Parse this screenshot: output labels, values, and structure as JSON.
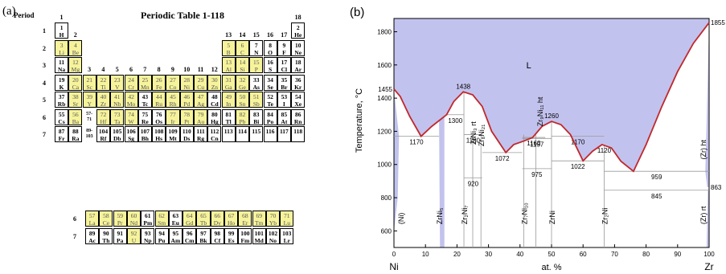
{
  "periodic_table": {
    "panel_label": "(a)",
    "title": "Periodic Table 1-118",
    "period_header": "Period",
    "group_labels": [
      "1",
      "2",
      "3",
      "4",
      "5",
      "6",
      "7",
      "8",
      "9",
      "10",
      "11",
      "12",
      "13",
      "14",
      "15",
      "16",
      "17",
      "18"
    ],
    "period_labels": [
      "1",
      "2",
      "3",
      "4",
      "5",
      "6",
      "7"
    ],
    "lan_act_period_labels": [
      "6",
      "7"
    ],
    "gap_labels": [
      "57-\n71",
      "89-\n103"
    ],
    "elements": [
      {
        "z": "1",
        "s": "H",
        "p": 1,
        "g": 1,
        "hl": false
      },
      {
        "z": "2",
        "s": "He",
        "p": 1,
        "g": 18,
        "hl": false
      },
      {
        "z": "3",
        "s": "Li",
        "p": 2,
        "g": 1,
        "hl": true
      },
      {
        "z": "4",
        "s": "Be",
        "p": 2,
        "g": 2,
        "hl": true
      },
      {
        "z": "5",
        "s": "B",
        "p": 2,
        "g": 13,
        "hl": true
      },
      {
        "z": "6",
        "s": "C",
        "p": 2,
        "g": 14,
        "hl": true
      },
      {
        "z": "7",
        "s": "N",
        "p": 2,
        "g": 15,
        "hl": false
      },
      {
        "z": "8",
        "s": "O",
        "p": 2,
        "g": 16,
        "hl": false
      },
      {
        "z": "9",
        "s": "F",
        "p": 2,
        "g": 17,
        "hl": false
      },
      {
        "z": "10",
        "s": "Ne",
        "p": 2,
        "g": 18,
        "hl": false
      },
      {
        "z": "11",
        "s": "Na",
        "p": 3,
        "g": 1,
        "hl": false
      },
      {
        "z": "12",
        "s": "Mg",
        "p": 3,
        "g": 2,
        "hl": true
      },
      {
        "z": "13",
        "s": "Al",
        "p": 3,
        "g": 13,
        "hl": true
      },
      {
        "z": "14",
        "s": "Si",
        "p": 3,
        "g": 14,
        "hl": true
      },
      {
        "z": "15",
        "s": "P",
        "p": 3,
        "g": 15,
        "hl": true
      },
      {
        "z": "16",
        "s": "S",
        "p": 3,
        "g": 16,
        "hl": false
      },
      {
        "z": "17",
        "s": "Cl",
        "p": 3,
        "g": 17,
        "hl": false
      },
      {
        "z": "18",
        "s": "Ar",
        "p": 3,
        "g": 18,
        "hl": false
      },
      {
        "z": "19",
        "s": "K",
        "p": 4,
        "g": 1,
        "hl": false
      },
      {
        "z": "20",
        "s": "Ca",
        "p": 4,
        "g": 2,
        "hl": true
      },
      {
        "z": "21",
        "s": "Sc",
        "p": 4,
        "g": 3,
        "hl": true
      },
      {
        "z": "22",
        "s": "Ti",
        "p": 4,
        "g": 4,
        "hl": true
      },
      {
        "z": "23",
        "s": "V",
        "p": 4,
        "g": 5,
        "hl": true
      },
      {
        "z": "24",
        "s": "Cr",
        "p": 4,
        "g": 6,
        "hl": true
      },
      {
        "z": "25",
        "s": "Mn",
        "p": 4,
        "g": 7,
        "hl": true
      },
      {
        "z": "26",
        "s": "Fe",
        "p": 4,
        "g": 8,
        "hl": true
      },
      {
        "z": "27",
        "s": "Co",
        "p": 4,
        "g": 9,
        "hl": true
      },
      {
        "z": "28",
        "s": "Ni",
        "p": 4,
        "g": 10,
        "hl": true
      },
      {
        "z": "29",
        "s": "Cu",
        "p": 4,
        "g": 11,
        "hl": true
      },
      {
        "z": "30",
        "s": "Zn",
        "p": 4,
        "g": 12,
        "hl": true
      },
      {
        "z": "31",
        "s": "Ga",
        "p": 4,
        "g": 13,
        "hl": true
      },
      {
        "z": "32",
        "s": "Ge",
        "p": 4,
        "g": 14,
        "hl": true
      },
      {
        "z": "33",
        "s": "As",
        "p": 4,
        "g": 15,
        "hl": false
      },
      {
        "z": "34",
        "s": "Se",
        "p": 4,
        "g": 16,
        "hl": false
      },
      {
        "z": "35",
        "s": "Br",
        "p": 4,
        "g": 17,
        "hl": false
      },
      {
        "z": "36",
        "s": "Kr",
        "p": 4,
        "g": 18,
        "hl": false
      },
      {
        "z": "37",
        "s": "Rb",
        "p": 5,
        "g": 1,
        "hl": false
      },
      {
        "z": "38",
        "s": "Sr",
        "p": 5,
        "g": 2,
        "hl": true
      },
      {
        "z": "39",
        "s": "Y",
        "p": 5,
        "g": 3,
        "hl": true
      },
      {
        "z": "40",
        "s": "Zr",
        "p": 5,
        "g": 4,
        "hl": true
      },
      {
        "z": "41",
        "s": "Nb",
        "p": 5,
        "g": 5,
        "hl": true
      },
      {
        "z": "42",
        "s": "Mo",
        "p": 5,
        "g": 6,
        "hl": true
      },
      {
        "z": "43",
        "s": "Tc",
        "p": 5,
        "g": 7,
        "hl": false
      },
      {
        "z": "44",
        "s": "Ru",
        "p": 5,
        "g": 8,
        "hl": true
      },
      {
        "z": "45",
        "s": "Rh",
        "p": 5,
        "g": 9,
        "hl": true
      },
      {
        "z": "46",
        "s": "Pd",
        "p": 5,
        "g": 10,
        "hl": true
      },
      {
        "z": "47",
        "s": "Ag",
        "p": 5,
        "g": 11,
        "hl": true
      },
      {
        "z": "48",
        "s": "Cd",
        "p": 5,
        "g": 12,
        "hl": false
      },
      {
        "z": "49",
        "s": "In",
        "p": 5,
        "g": 13,
        "hl": true
      },
      {
        "z": "50",
        "s": "Sn",
        "p": 5,
        "g": 14,
        "hl": true
      },
      {
        "z": "51",
        "s": "Sb",
        "p": 5,
        "g": 15,
        "hl": true
      },
      {
        "z": "52",
        "s": "Te",
        "p": 5,
        "g": 16,
        "hl": false
      },
      {
        "z": "53",
        "s": "I",
        "p": 5,
        "g": 17,
        "hl": false
      },
      {
        "z": "54",
        "s": "Xe",
        "p": 5,
        "g": 18,
        "hl": false
      },
      {
        "z": "55",
        "s": "Cs",
        "p": 6,
        "g": 1,
        "hl": false
      },
      {
        "z": "56",
        "s": "Ba",
        "p": 6,
        "g": 2,
        "hl": true
      },
      {
        "z": "72",
        "s": "Hf",
        "p": 6,
        "g": 4,
        "hl": true
      },
      {
        "z": "73",
        "s": "Ta",
        "p": 6,
        "g": 5,
        "hl": true
      },
      {
        "z": "74",
        "s": "W",
        "p": 6,
        "g": 6,
        "hl": true
      },
      {
        "z": "75",
        "s": "Re",
        "p": 6,
        "g": 7,
        "hl": false
      },
      {
        "z": "76",
        "s": "Os",
        "p": 6,
        "g": 8,
        "hl": false
      },
      {
        "z": "77",
        "s": "Ir",
        "p": 6,
        "g": 9,
        "hl": true
      },
      {
        "z": "78",
        "s": "Pt",
        "p": 6,
        "g": 10,
        "hl": true
      },
      {
        "z": "79",
        "s": "Au",
        "p": 6,
        "g": 11,
        "hl": true
      },
      {
        "z": "80",
        "s": "Hg",
        "p": 6,
        "g": 12,
        "hl": false
      },
      {
        "z": "81",
        "s": "Tl",
        "p": 6,
        "g": 13,
        "hl": false
      },
      {
        "z": "82",
        "s": "Pb",
        "p": 6,
        "g": 14,
        "hl": true
      },
      {
        "z": "83",
        "s": "Bi",
        "p": 6,
        "g": 15,
        "hl": false
      },
      {
        "z": "84",
        "s": "Po",
        "p": 6,
        "g": 16,
        "hl": false
      },
      {
        "z": "85",
        "s": "At",
        "p": 6,
        "g": 17,
        "hl": false
      },
      {
        "z": "86",
        "s": "Rn",
        "p": 6,
        "g": 18,
        "hl": false
      },
      {
        "z": "87",
        "s": "Fr",
        "p": 7,
        "g": 1,
        "hl": false
      },
      {
        "z": "88",
        "s": "Ra",
        "p": 7,
        "g": 2,
        "hl": false
      },
      {
        "z": "104",
        "s": "Rf",
        "p": 7,
        "g": 4,
        "hl": false
      },
      {
        "z": "105",
        "s": "Db",
        "p": 7,
        "g": 5,
        "hl": false
      },
      {
        "z": "106",
        "s": "Sg",
        "p": 7,
        "g": 6,
        "hl": false
      },
      {
        "z": "107",
        "s": "Bh",
        "p": 7,
        "g": 7,
        "hl": false
      },
      {
        "z": "108",
        "s": "Hs",
        "p": 7,
        "g": 8,
        "hl": false
      },
      {
        "z": "109",
        "s": "Mt",
        "p": 7,
        "g": 9,
        "hl": false
      },
      {
        "z": "110",
        "s": "Ds",
        "p": 7,
        "g": 10,
        "hl": false
      },
      {
        "z": "111",
        "s": "Rg",
        "p": 7,
        "g": 11,
        "hl": false
      },
      {
        "z": "112",
        "s": "Cn",
        "p": 7,
        "g": 12,
        "hl": false
      },
      {
        "z": "113",
        "s": "",
        "p": 7,
        "g": 13,
        "hl": false
      },
      {
        "z": "114",
        "s": "",
        "p": 7,
        "g": 14,
        "hl": false
      },
      {
        "z": "115",
        "s": "",
        "p": 7,
        "g": 15,
        "hl": false
      },
      {
        "z": "116",
        "s": "",
        "p": 7,
        "g": 16,
        "hl": false
      },
      {
        "z": "117",
        "s": "",
        "p": 7,
        "g": 17,
        "hl": false
      },
      {
        "z": "118",
        "s": "",
        "p": 7,
        "g": 18,
        "hl": false
      }
    ],
    "lanthanides": [
      {
        "z": "57",
        "s": "La",
        "hl": true
      },
      {
        "z": "58",
        "s": "Ce",
        "hl": true
      },
      {
        "z": "59",
        "s": "Pr",
        "hl": true
      },
      {
        "z": "60",
        "s": "Nd",
        "hl": true
      },
      {
        "z": "61",
        "s": "Pm",
        "hl": false
      },
      {
        "z": "62",
        "s": "Sm",
        "hl": true
      },
      {
        "z": "63",
        "s": "Eu",
        "hl": false
      },
      {
        "z": "64",
        "s": "Gd",
        "hl": true
      },
      {
        "z": "65",
        "s": "Tb",
        "hl": true
      },
      {
        "z": "66",
        "s": "Dy",
        "hl": true
      },
      {
        "z": "67",
        "s": "Ho",
        "hl": true
      },
      {
        "z": "68",
        "s": "Er",
        "hl": true
      },
      {
        "z": "69",
        "s": "Tm",
        "hl": true
      },
      {
        "z": "70",
        "s": "Yb",
        "hl": true
      },
      {
        "z": "71",
        "s": "Lu",
        "hl": true
      }
    ],
    "actinides": [
      {
        "z": "89",
        "s": "Ac",
        "hl": false
      },
      {
        "z": "90",
        "s": "Th",
        "hl": false
      },
      {
        "z": "91",
        "s": "Pa",
        "hl": false
      },
      {
        "z": "92",
        "s": "U",
        "hl": true
      },
      {
        "z": "93",
        "s": "Np",
        "hl": false
      },
      {
        "z": "94",
        "s": "Pu",
        "hl": false
      },
      {
        "z": "95",
        "s": "Am",
        "hl": false
      },
      {
        "z": "96",
        "s": "Cm",
        "hl": false
      },
      {
        "z": "97",
        "s": "Bk",
        "hl": false
      },
      {
        "z": "98",
        "s": "Cf",
        "hl": false
      },
      {
        "z": "99",
        "s": "Es",
        "hl": false
      },
      {
        "z": "100",
        "s": "Fm",
        "hl": false
      },
      {
        "z": "101",
        "s": "Md",
        "hl": false
      },
      {
        "z": "102",
        "s": "No",
        "hl": false
      },
      {
        "z": "103",
        "s": "Lr",
        "hl": false
      }
    ],
    "colors": {
      "highlight": "#f6f39b",
      "border": "#000000"
    }
  },
  "phase_diagram": {
    "panel_label": "(b)",
    "ylabel": "Temperature, °C",
    "xlabel": "at. %",
    "left_element": "Ni",
    "right_element": "Zr",
    "x_ticks": [
      0,
      10,
      20,
      30,
      40,
      50,
      60,
      70,
      80,
      90,
      100
    ],
    "y_ticks": [
      600,
      800,
      1000,
      1200,
      1400,
      1600,
      1800
    ],
    "xlim": [
      0,
      100
    ],
    "ylim": [
      500,
      1880
    ],
    "liquid_label": "L",
    "liquidus": [
      [
        0,
        1455
      ],
      [
        2,
        1410
      ],
      [
        5,
        1290
      ],
      [
        8.6,
        1170
      ],
      [
        12,
        1230
      ],
      [
        16.7,
        1300
      ],
      [
        19,
        1380
      ],
      [
        22,
        1438
      ],
      [
        25,
        1420
      ],
      [
        28,
        1350
      ],
      [
        31,
        1200
      ],
      [
        35.5,
        1072
      ],
      [
        38,
        1120
      ],
      [
        41,
        1140
      ],
      [
        44,
        1163
      ],
      [
        47,
        1230
      ],
      [
        50,
        1260
      ],
      [
        53,
        1240
      ],
      [
        56,
        1180
      ],
      [
        60,
        1022
      ],
      [
        63,
        1080
      ],
      [
        66,
        1120
      ],
      [
        69,
        1100
      ],
      [
        72,
        1020
      ],
      [
        76,
        959
      ],
      [
        80,
        1120
      ],
      [
        85,
        1350
      ],
      [
        90,
        1560
      ],
      [
        95,
        1730
      ],
      [
        100,
        1855
      ]
    ],
    "invariants": [
      {
        "label": "1170",
        "x1": 0,
        "x2": 14.3,
        "T": 1170
      },
      {
        "label": "1300",
        "x1": 16.7,
        "x2": 22.2,
        "T": 1300
      },
      {
        "label": "1180",
        "x1": 22.2,
        "x2": 28,
        "T": 1180
      },
      {
        "label": "920",
        "x1": 22.2,
        "x2": 28,
        "T": 920
      },
      {
        "label": "1163",
        "x1": 40.7,
        "x2": 48,
        "T": 1163
      },
      {
        "label": "1157",
        "x1": 40.7,
        "x2": 50,
        "T": 1157
      },
      {
        "label": "975",
        "x1": 40.7,
        "x2": 50,
        "T": 975
      },
      {
        "label": "1170",
        "x1": 50,
        "x2": 66.7,
        "T": 1170
      },
      {
        "label": "1022",
        "x1": 50,
        "x2": 66.7,
        "T": 1022
      },
      {
        "label": "1120",
        "x1": 66.7,
        "x2": 66.7,
        "T": 1120
      },
      {
        "label": "959",
        "x1": 66.7,
        "x2": 100,
        "T": 959
      },
      {
        "label": "845",
        "x1": 66.7,
        "x2": 100,
        "T": 845
      },
      {
        "label": "1072",
        "x1": 28,
        "x2": 40.7,
        "T": 1072
      }
    ],
    "temp_labels": [
      {
        "text": "1455",
        "x": 0,
        "T": 1455
      },
      {
        "text": "1855",
        "x": 100,
        "T": 1855
      },
      {
        "text": "863",
        "x": 100,
        "T": 863
      },
      {
        "text": "1438",
        "x": 22,
        "T": 1438
      },
      {
        "text": "1260",
        "x": 50,
        "T": 1260
      }
    ],
    "phases": [
      {
        "text": "(Ni)",
        "x": 2.0
      },
      {
        "text": "ZrNi₅",
        "x": 14.3
      },
      {
        "text": "Zr₂Ni₇",
        "x": 22.2
      },
      {
        "text": "ZrNi₃ rt",
        "x": 25
      },
      {
        "text": "Zr₈Ni₂₁",
        "x": 27.6
      },
      {
        "text": "Zr₇Ni₁₀",
        "x": 41.2
      },
      {
        "text": "Zr₉Ni₁₁ ht",
        "x": 46.2
      },
      {
        "text": "ZrNi",
        "x": 50
      },
      {
        "text": "Zr₂Ni",
        "x": 66.7
      },
      {
        "text": "(Zr) ht",
        "x": 98
      },
      {
        "text": "(Zr) rt",
        "x": 98
      }
    ],
    "colors": {
      "liquid_fill": "#c2c2ee",
      "liquidus": "#c0282c",
      "grid": "#999999"
    }
  }
}
